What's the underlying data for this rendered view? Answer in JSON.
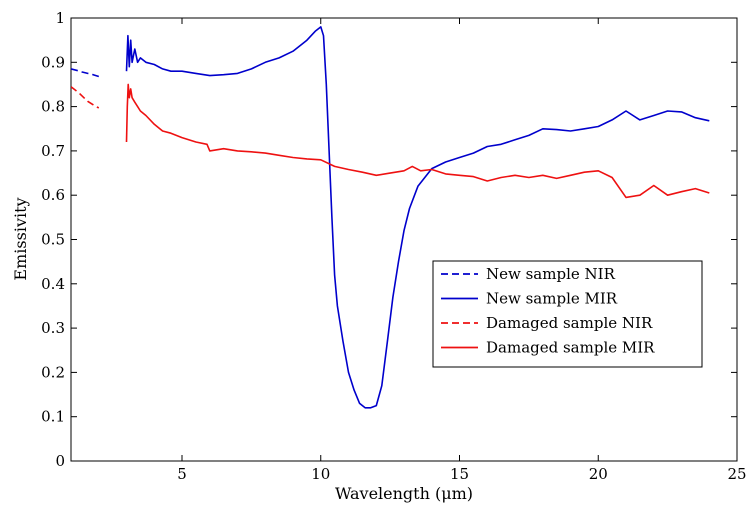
{
  "chart_data": {
    "type": "line",
    "title": "",
    "xlabel": "Wavelength (μm)",
    "ylabel": "Emissivity",
    "xlim": [
      1,
      25
    ],
    "ylim": [
      0,
      1
    ],
    "xticks": [
      5,
      10,
      15,
      20,
      25
    ],
    "yticks": [
      0,
      0.1,
      0.2,
      0.3,
      0.4,
      0.5,
      0.6,
      0.7,
      0.8,
      0.9,
      1
    ],
    "grid": false,
    "legend_position": "center-right",
    "series": [
      {
        "name": "New sample NIR",
        "color": "#0000cc",
        "style": "dashed",
        "x": [
          1.0,
          1.2,
          1.4,
          1.6,
          1.8,
          2.0
        ],
        "y": [
          0.885,
          0.882,
          0.878,
          0.875,
          0.872,
          0.868
        ]
      },
      {
        "name": "New sample MIR",
        "color": "#0000cc",
        "style": "solid",
        "x": [
          3.0,
          3.05,
          3.1,
          3.15,
          3.2,
          3.3,
          3.4,
          3.5,
          3.7,
          4.0,
          4.3,
          4.6,
          5.0,
          5.5,
          6.0,
          6.5,
          7.0,
          7.5,
          8.0,
          8.5,
          9.0,
          9.5,
          9.8,
          10.0,
          10.1,
          10.2,
          10.3,
          10.4,
          10.5,
          10.6,
          10.8,
          11.0,
          11.2,
          11.4,
          11.6,
          11.8,
          12.0,
          12.2,
          12.4,
          12.6,
          12.8,
          13.0,
          13.2,
          13.5,
          14.0,
          14.5,
          15.0,
          15.5,
          16.0,
          16.5,
          17.0,
          17.5,
          18.0,
          18.5,
          19.0,
          19.5,
          20.0,
          20.5,
          21.0,
          21.5,
          22.0,
          22.5,
          23.0,
          23.5,
          24.0
        ],
        "y": [
          0.88,
          0.96,
          0.89,
          0.95,
          0.9,
          0.93,
          0.9,
          0.91,
          0.9,
          0.895,
          0.885,
          0.88,
          0.88,
          0.875,
          0.87,
          0.872,
          0.875,
          0.885,
          0.9,
          0.91,
          0.925,
          0.95,
          0.97,
          0.98,
          0.96,
          0.85,
          0.7,
          0.55,
          0.42,
          0.35,
          0.27,
          0.2,
          0.16,
          0.13,
          0.12,
          0.12,
          0.125,
          0.17,
          0.27,
          0.37,
          0.45,
          0.52,
          0.57,
          0.62,
          0.66,
          0.675,
          0.685,
          0.695,
          0.71,
          0.715,
          0.725,
          0.735,
          0.75,
          0.748,
          0.745,
          0.75,
          0.755,
          0.77,
          0.79,
          0.77,
          0.78,
          0.79,
          0.788,
          0.775,
          0.768
        ]
      },
      {
        "name": "Damaged sample NIR",
        "color": "#ee1111",
        "style": "dashed",
        "x": [
          1.0,
          1.3,
          1.6,
          1.9,
          2.0
        ],
        "y": [
          0.845,
          0.83,
          0.812,
          0.8,
          0.797
        ]
      },
      {
        "name": "Damaged sample MIR",
        "color": "#ee1111",
        "style": "solid",
        "x": [
          3.0,
          3.03,
          3.06,
          3.1,
          3.15,
          3.2,
          3.3,
          3.4,
          3.5,
          3.7,
          4.0,
          4.3,
          4.6,
          5.0,
          5.5,
          5.9,
          6.0,
          6.5,
          7.0,
          7.5,
          8.0,
          8.5,
          9.0,
          9.5,
          10.0,
          10.5,
          11.0,
          11.5,
          12.0,
          12.5,
          13.0,
          13.3,
          13.6,
          14.0,
          14.5,
          15.0,
          15.5,
          16.0,
          16.5,
          17.0,
          17.5,
          18.0,
          18.5,
          19.0,
          19.5,
          20.0,
          20.5,
          21.0,
          21.5,
          22.0,
          22.5,
          23.0,
          23.5,
          24.0
        ],
        "y": [
          0.72,
          0.8,
          0.85,
          0.82,
          0.84,
          0.82,
          0.81,
          0.8,
          0.79,
          0.78,
          0.76,
          0.745,
          0.74,
          0.73,
          0.72,
          0.715,
          0.7,
          0.705,
          0.7,
          0.698,
          0.695,
          0.69,
          0.685,
          0.682,
          0.68,
          0.665,
          0.658,
          0.652,
          0.645,
          0.65,
          0.655,
          0.665,
          0.655,
          0.658,
          0.648,
          0.645,
          0.642,
          0.632,
          0.64,
          0.645,
          0.64,
          0.645,
          0.638,
          0.645,
          0.652,
          0.655,
          0.64,
          0.595,
          0.6,
          0.622,
          0.6,
          0.608,
          0.615,
          0.605
        ]
      }
    ]
  }
}
